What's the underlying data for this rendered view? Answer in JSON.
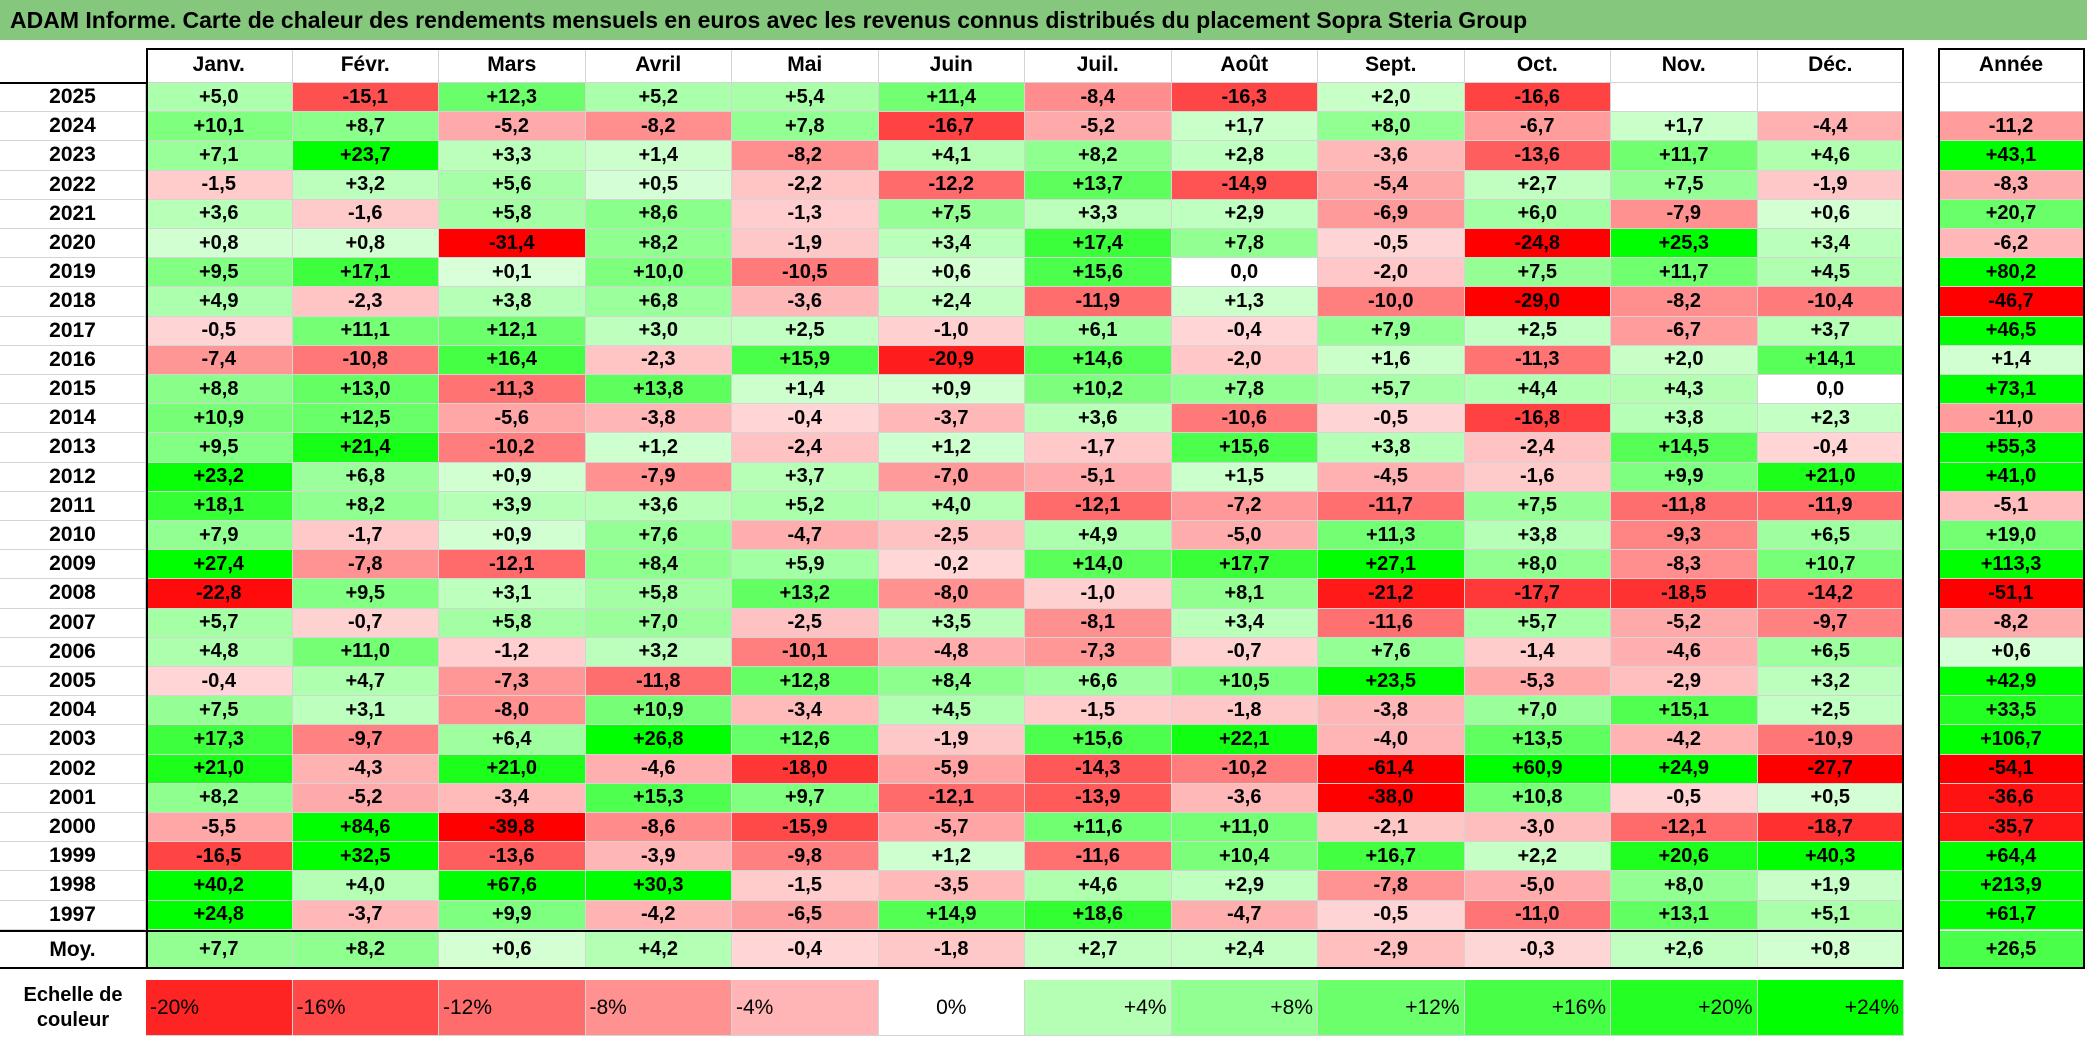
{
  "title": "ADAM Informe. Carte de chaleur des rendements mensuels en euros avec les revenus connus distribués du placement Sopra Steria Group",
  "scale_label": "Echelle de couleur",
  "colors": {
    "title_bg": "#84c77d",
    "max_green": "#00ff00",
    "max_red": "#ff0000",
    "neutral": "#ffffff"
  },
  "chart_data": {
    "type": "heatmap",
    "title": "ADAM Informe. Carte de chaleur des rendements mensuels en euros avec les revenus connus distribués du placement Sopra Steria Group",
    "months": [
      "Janv.",
      "Févr.",
      "Mars",
      "Avril",
      "Mai",
      "Juin",
      "Juil.",
      "Août",
      "Sept.",
      "Oct.",
      "Nov.",
      "Déc."
    ],
    "year_header": "Année",
    "rows": [
      {
        "year": "2025",
        "months": [
          "+5,0",
          "-15,1",
          "+12,3",
          "+5,2",
          "+5,4",
          "+11,4",
          "-8,4",
          "-16,3",
          "+2,0",
          "-16,6",
          "",
          ""
        ],
        "annual": ""
      },
      {
        "year": "2024",
        "months": [
          "+10,1",
          "+8,7",
          "-5,2",
          "-8,2",
          "+7,8",
          "-16,7",
          "-5,2",
          "+1,7",
          "+8,0",
          "-6,7",
          "+1,7",
          "-4,4"
        ],
        "annual": "-11,2"
      },
      {
        "year": "2023",
        "months": [
          "+7,1",
          "+23,7",
          "+3,3",
          "+1,4",
          "-8,2",
          "+4,1",
          "+8,2",
          "+2,8",
          "-3,6",
          "-13,6",
          "+11,7",
          "+4,6"
        ],
        "annual": "+43,1"
      },
      {
        "year": "2022",
        "months": [
          "-1,5",
          "+3,2",
          "+5,6",
          "+0,5",
          "-2,2",
          "-12,2",
          "+13,7",
          "-14,9",
          "-5,4",
          "+2,7",
          "+7,5",
          "-1,9"
        ],
        "annual": "-8,3"
      },
      {
        "year": "2021",
        "months": [
          "+3,6",
          "-1,6",
          "+5,8",
          "+8,6",
          "-1,3",
          "+7,5",
          "+3,3",
          "+2,9",
          "-6,9",
          "+6,0",
          "-7,9",
          "+0,6"
        ],
        "annual": "+20,7"
      },
      {
        "year": "2020",
        "months": [
          "+0,8",
          "+0,8",
          "-31,4",
          "+8,2",
          "-1,9",
          "+3,4",
          "+17,4",
          "+7,8",
          "-0,5",
          "-24,8",
          "+25,3",
          "+3,4"
        ],
        "annual": "-6,2"
      },
      {
        "year": "2019",
        "months": [
          "+9,5",
          "+17,1",
          "+0,1",
          "+10,0",
          "-10,5",
          "+0,6",
          "+15,6",
          "0,0",
          "-2,0",
          "+7,5",
          "+11,7",
          "+4,5"
        ],
        "annual": "+80,2"
      },
      {
        "year": "2018",
        "months": [
          "+4,9",
          "-2,3",
          "+3,8",
          "+6,8",
          "-3,6",
          "+2,4",
          "-11,9",
          "+1,3",
          "-10,0",
          "-29,0",
          "-8,2",
          "-10,4"
        ],
        "annual": "-46,7"
      },
      {
        "year": "2017",
        "months": [
          "-0,5",
          "+11,1",
          "+12,1",
          "+3,0",
          "+2,5",
          "-1,0",
          "+6,1",
          "-0,4",
          "+7,9",
          "+2,5",
          "-6,7",
          "+3,7"
        ],
        "annual": "+46,5"
      },
      {
        "year": "2016",
        "months": [
          "-7,4",
          "-10,8",
          "+16,4",
          "-2,3",
          "+15,9",
          "-20,9",
          "+14,6",
          "-2,0",
          "+1,6",
          "-11,3",
          "+2,0",
          "+14,1"
        ],
        "annual": "+1,4"
      },
      {
        "year": "2015",
        "months": [
          "+8,8",
          "+13,0",
          "-11,3",
          "+13,8",
          "+1,4",
          "+0,9",
          "+10,2",
          "+7,8",
          "+5,7",
          "+4,4",
          "+4,3",
          "0,0"
        ],
        "annual": "+73,1"
      },
      {
        "year": "2014",
        "months": [
          "+10,9",
          "+12,5",
          "-5,6",
          "-3,8",
          "-0,4",
          "-3,7",
          "+3,6",
          "-10,6",
          "-0,5",
          "-16,8",
          "+3,8",
          "+2,3"
        ],
        "annual": "-11,0"
      },
      {
        "year": "2013",
        "months": [
          "+9,5",
          "+21,4",
          "-10,2",
          "+1,2",
          "-2,4",
          "+1,2",
          "-1,7",
          "+15,6",
          "+3,8",
          "-2,4",
          "+14,5",
          "-0,4"
        ],
        "annual": "+55,3"
      },
      {
        "year": "2012",
        "months": [
          "+23,2",
          "+6,8",
          "+0,9",
          "-7,9",
          "+3,7",
          "-7,0",
          "-5,1",
          "+1,5",
          "-4,5",
          "-1,6",
          "+9,9",
          "+21,0"
        ],
        "annual": "+41,0"
      },
      {
        "year": "2011",
        "months": [
          "+18,1",
          "+8,2",
          "+3,9",
          "+3,6",
          "+5,2",
          "+4,0",
          "-12,1",
          "-7,2",
          "-11,7",
          "+7,5",
          "-11,8",
          "-11,9"
        ],
        "annual": "-5,1"
      },
      {
        "year": "2010",
        "months": [
          "+7,9",
          "-1,7",
          "+0,9",
          "+7,6",
          "-4,7",
          "-2,5",
          "+4,9",
          "-5,0",
          "+11,3",
          "+3,8",
          "-9,3",
          "+6,5"
        ],
        "annual": "+19,0"
      },
      {
        "year": "2009",
        "months": [
          "+27,4",
          "-7,8",
          "-12,1",
          "+8,4",
          "+5,9",
          "-0,2",
          "+14,0",
          "+17,7",
          "+27,1",
          "+8,0",
          "-8,3",
          "+10,7"
        ],
        "annual": "+113,3"
      },
      {
        "year": "2008",
        "months": [
          "-22,8",
          "+9,5",
          "+3,1",
          "+5,8",
          "+13,2",
          "-8,0",
          "-1,0",
          "+8,1",
          "-21,2",
          "-17,7",
          "-18,5",
          "-14,2"
        ],
        "annual": "-51,1"
      },
      {
        "year": "2007",
        "months": [
          "+5,7",
          "-0,7",
          "+5,8",
          "+7,0",
          "-2,5",
          "+3,5",
          "-8,1",
          "+3,4",
          "-11,6",
          "+5,7",
          "-5,2",
          "-9,7"
        ],
        "annual": "-8,2"
      },
      {
        "year": "2006",
        "months": [
          "+4,8",
          "+11,0",
          "-1,2",
          "+3,2",
          "-10,1",
          "-4,8",
          "-7,3",
          "-0,7",
          "+7,6",
          "-1,4",
          "-4,6",
          "+6,5"
        ],
        "annual": "+0,6"
      },
      {
        "year": "2005",
        "months": [
          "-0,4",
          "+4,7",
          "-7,3",
          "-11,8",
          "+12,8",
          "+8,4",
          "+6,6",
          "+10,5",
          "+23,5",
          "-5,3",
          "-2,9",
          "+3,2"
        ],
        "annual": "+42,9"
      },
      {
        "year": "2004",
        "months": [
          "+7,5",
          "+3,1",
          "-8,0",
          "+10,9",
          "-3,4",
          "+4,5",
          "-1,5",
          "-1,8",
          "-3,8",
          "+7,0",
          "+15,1",
          "+2,5"
        ],
        "annual": "+33,5"
      },
      {
        "year": "2003",
        "months": [
          "+17,3",
          "-9,7",
          "+6,4",
          "+26,8",
          "+12,6",
          "-1,9",
          "+15,6",
          "+22,1",
          "-4,0",
          "+13,5",
          "-4,2",
          "-10,9"
        ],
        "annual": "+106,7"
      },
      {
        "year": "2002",
        "months": [
          "+21,0",
          "-4,3",
          "+21,0",
          "-4,6",
          "-18,0",
          "-5,9",
          "-14,3",
          "-10,2",
          "-61,4",
          "+60,9",
          "+24,9",
          "-27,7"
        ],
        "annual": "-54,1"
      },
      {
        "year": "2001",
        "months": [
          "+8,2",
          "-5,2",
          "-3,4",
          "+15,3",
          "+9,7",
          "-12,1",
          "-13,9",
          "-3,6",
          "-38,0",
          "+10,8",
          "-0,5",
          "+0,5"
        ],
        "annual": "-36,6"
      },
      {
        "year": "2000",
        "months": [
          "-5,5",
          "+84,6",
          "-39,8",
          "-8,6",
          "-15,9",
          "-5,7",
          "+11,6",
          "+11,0",
          "-2,1",
          "-3,0",
          "-12,1",
          "-18,7"
        ],
        "annual": "-35,7"
      },
      {
        "year": "1999",
        "months": [
          "-16,5",
          "+32,5",
          "-13,6",
          "-3,9",
          "-9,8",
          "+1,2",
          "-11,6",
          "+10,4",
          "+16,7",
          "+2,2",
          "+20,6",
          "+40,3"
        ],
        "annual": "+64,4"
      },
      {
        "year": "1998",
        "months": [
          "+40,2",
          "+4,0",
          "+67,6",
          "+30,3",
          "-1,5",
          "-3,5",
          "+4,6",
          "+2,9",
          "-7,8",
          "-5,0",
          "+8,0",
          "+1,9"
        ],
        "annual": "+213,9"
      },
      {
        "year": "1997",
        "months": [
          "+24,8",
          "-3,7",
          "+9,9",
          "-4,2",
          "-6,5",
          "+14,9",
          "+18,6",
          "-4,7",
          "-0,5",
          "-11,0",
          "+13,1",
          "+5,1"
        ],
        "annual": "+61,7"
      }
    ],
    "average": {
      "label": "Moy.",
      "months": [
        "+7,7",
        "+8,2",
        "+0,6",
        "+4,2",
        "-0,4",
        "-1,8",
        "+2,7",
        "+2,4",
        "-2,9",
        "-0,3",
        "+2,6",
        "+0,8"
      ],
      "annual": "+26,5"
    },
    "scale": [
      "-20%",
      "-16%",
      "-12%",
      "-8%",
      "-4%",
      "0%",
      "+4%",
      "+8%",
      "+12%",
      "+16%",
      "+20%",
      "+24%"
    ]
  }
}
